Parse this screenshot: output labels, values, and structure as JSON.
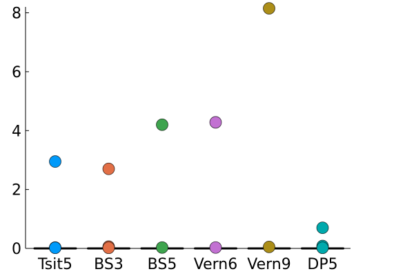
{
  "chart_data": {
    "type": "box",
    "title": "",
    "xlabel": "",
    "ylabel": "",
    "ylim": [
      0,
      8.2
    ],
    "yticks": [
      0,
      2,
      4,
      6,
      8
    ],
    "ytick_labels": [
      "0",
      "2",
      "4",
      "6",
      "8"
    ],
    "grid": false,
    "legend": "none",
    "categories": [
      "Tsit5",
      "BS3",
      "BS5",
      "Vern6",
      "Vern9",
      "DP5"
    ],
    "series": [
      {
        "color": "#009AFA",
        "median": 0.0,
        "outliers": [
          2.95,
          0.03,
          0.02
        ]
      },
      {
        "color": "#E26F46",
        "median": 0.0,
        "outliers": [
          2.7,
          0.06,
          0.02
        ]
      },
      {
        "color": "#3EA44E",
        "median": 0.0,
        "outliers": [
          4.2,
          0.03
        ]
      },
      {
        "color": "#C271D2",
        "median": 0.0,
        "outliers": [
          4.28,
          0.03
        ]
      },
      {
        "color": "#AC8E18",
        "median": 0.0,
        "outliers": [
          8.15,
          0.05
        ]
      },
      {
        "color": "#00A9AC",
        "median": 0.0,
        "outliers": [
          0.7,
          0.08,
          0.02
        ]
      }
    ]
  }
}
